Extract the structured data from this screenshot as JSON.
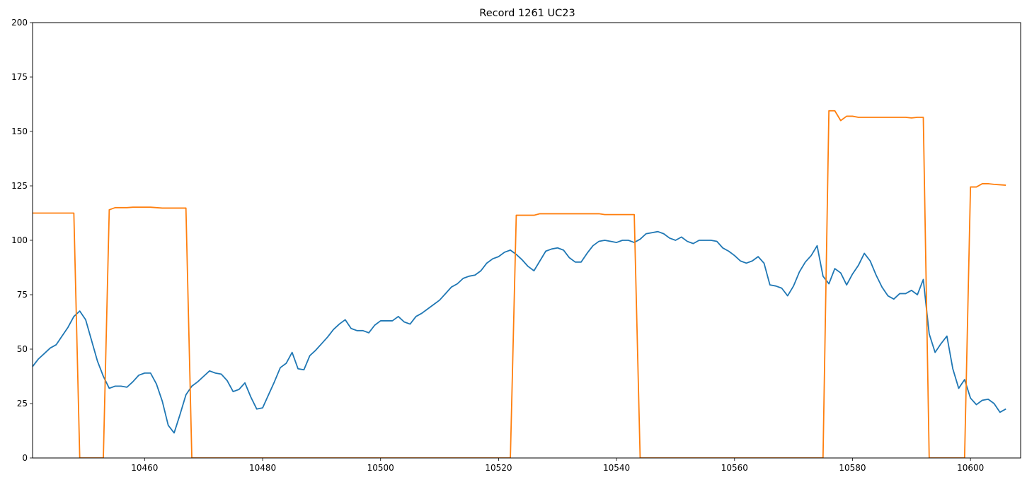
{
  "chart_data": {
    "type": "line",
    "title": "Record 1261 UC23",
    "xlabel": "",
    "ylabel": "",
    "xlim": [
      10441,
      10608.5
    ],
    "ylim": [
      0,
      200
    ],
    "x_ticks": [
      10460,
      10480,
      10500,
      10520,
      10540,
      10560,
      10580,
      10600
    ],
    "y_ticks": [
      0,
      25,
      50,
      75,
      100,
      125,
      150,
      175,
      200
    ],
    "grid": false,
    "legend": "none",
    "series": [
      {
        "color": "#1f77b4",
        "x": [
          10441,
          10442,
          10443,
          10444,
          10445,
          10446,
          10447,
          10448,
          10449,
          10450,
          10451,
          10452,
          10453,
          10454,
          10455,
          10456,
          10457,
          10458,
          10459,
          10460,
          10461,
          10462,
          10463,
          10464,
          10465,
          10466,
          10467,
          10468,
          10469,
          10470,
          10471,
          10472,
          10473,
          10474,
          10475,
          10476,
          10477,
          10478,
          10479,
          10480,
          10481,
          10482,
          10483,
          10484,
          10485,
          10486,
          10487,
          10488,
          10489,
          10490,
          10491,
          10492,
          10493,
          10494,
          10495,
          10496,
          10497,
          10498,
          10499,
          10500,
          10501,
          10502,
          10503,
          10504,
          10505,
          10506,
          10507,
          10508,
          10509,
          10510,
          10511,
          10512,
          10513,
          10514,
          10515,
          10516,
          10517,
          10518,
          10519,
          10520,
          10521,
          10522,
          10523,
          10524,
          10525,
          10526,
          10527,
          10528,
          10529,
          10530,
          10531,
          10532,
          10533,
          10534,
          10535,
          10536,
          10537,
          10538,
          10539,
          10540,
          10541,
          10542,
          10543,
          10544,
          10545,
          10546,
          10547,
          10548,
          10549,
          10550,
          10551,
          10552,
          10553,
          10554,
          10555,
          10556,
          10557,
          10558,
          10559,
          10560,
          10561,
          10562,
          10563,
          10564,
          10565,
          10566,
          10567,
          10568,
          10569,
          10570,
          10571,
          10572,
          10573,
          10574,
          10575,
          10576,
          10577,
          10578,
          10579,
          10580,
          10581,
          10582,
          10583,
          10584,
          10585,
          10586,
          10587,
          10588,
          10589,
          10590,
          10591,
          10592,
          10593,
          10594,
          10595,
          10596,
          10597,
          10598,
          10599,
          10600,
          10601,
          10602,
          10603,
          10604,
          10605,
          10606
        ],
        "y": [
          42,
          45.5,
          48,
          50.5,
          52,
          56,
          60,
          65,
          67.5,
          63.5,
          54,
          44.5,
          37.5,
          32,
          33,
          33,
          32.5,
          35,
          38,
          39,
          39,
          34,
          26,
          15,
          11.5,
          20,
          29,
          33,
          35,
          37.5,
          40,
          39,
          38.5,
          35.5,
          30.5,
          31.5,
          34.5,
          28,
          22.5,
          23,
          29,
          35,
          41.5,
          43.5,
          48.5,
          41,
          40.5,
          47,
          49.5,
          52.5,
          55.5,
          59,
          61.5,
          63.5,
          59.5,
          58.5,
          58.5,
          57.5,
          61,
          63,
          63,
          63,
          65,
          62.5,
          61.5,
          65,
          66.5,
          68.5,
          70.5,
          72.5,
          75.5,
          78.5,
          80,
          82.5,
          83.5,
          84,
          86,
          89.5,
          91.5,
          92.5,
          94.5,
          95.5,
          93.5,
          91,
          88,
          86,
          90.5,
          95,
          96,
          96.5,
          95.5,
          92,
          90,
          90,
          94,
          97.5,
          99.5,
          100,
          99.5,
          99,
          100,
          100,
          99,
          100.5,
          103,
          103.5,
          104,
          103,
          101,
          100,
          101.5,
          99.5,
          98.5,
          100,
          100,
          100,
          99.5,
          96.5,
          95,
          93,
          90.5,
          89.5,
          90.5,
          92.5,
          89.5,
          79.5,
          79,
          78,
          74.5,
          79,
          85.5,
          90,
          93,
          97.5,
          83.5,
          80,
          87,
          85,
          79.5,
          84.5,
          88.5,
          94,
          90.5,
          84,
          78.5,
          74.5,
          73,
          75.5,
          75.5,
          77,
          75,
          82,
          57,
          48.5,
          52.5,
          56,
          41,
          32,
          36,
          27.5,
          24.5,
          26.5,
          27,
          25,
          21,
          22.5
        ]
      },
      {
        "color": "#ff7f0e",
        "x": [
          10441,
          10448,
          10449,
          10453,
          10454,
          10454.5,
          10455,
          10456,
          10457,
          10458,
          10459,
          10460,
          10461,
          10462,
          10463,
          10464,
          10465,
          10466,
          10467,
          10468,
          10522,
          10523,
          10524,
          10525,
          10526,
          10527,
          10528,
          10529,
          10530,
          10531,
          10532,
          10533,
          10534,
          10535,
          10536,
          10537,
          10538,
          10539,
          10540,
          10541,
          10542,
          10543,
          10544,
          10575,
          10576,
          10577,
          10578,
          10579,
          10580,
          10581,
          10582,
          10583,
          10584,
          10585,
          10586,
          10587,
          10588,
          10589,
          10590,
          10591,
          10592,
          10593,
          10599,
          10600,
          10601,
          10602,
          10603,
          10604,
          10605,
          10606
        ],
        "y": [
          112.5,
          112.5,
          0,
          0,
          114,
          114.5,
          115,
          115,
          115,
          115.2,
          115.2,
          115.2,
          115.2,
          115,
          114.8,
          114.8,
          114.8,
          114.8,
          114.8,
          0,
          0,
          111.5,
          111.5,
          111.5,
          111.5,
          112.2,
          112.2,
          112.2,
          112.2,
          112.2,
          112.2,
          112.2,
          112.2,
          112.2,
          112.2,
          112.2,
          111.8,
          111.8,
          111.8,
          111.8,
          111.8,
          111.8,
          0,
          0,
          159.5,
          159.5,
          155,
          157,
          157,
          156.5,
          156.5,
          156.5,
          156.5,
          156.5,
          156.5,
          156.5,
          156.5,
          156.5,
          156.2,
          156.5,
          156.5,
          0,
          0,
          124.5,
          124.5,
          126,
          126,
          125.7,
          125.5,
          125.3
        ]
      }
    ]
  }
}
